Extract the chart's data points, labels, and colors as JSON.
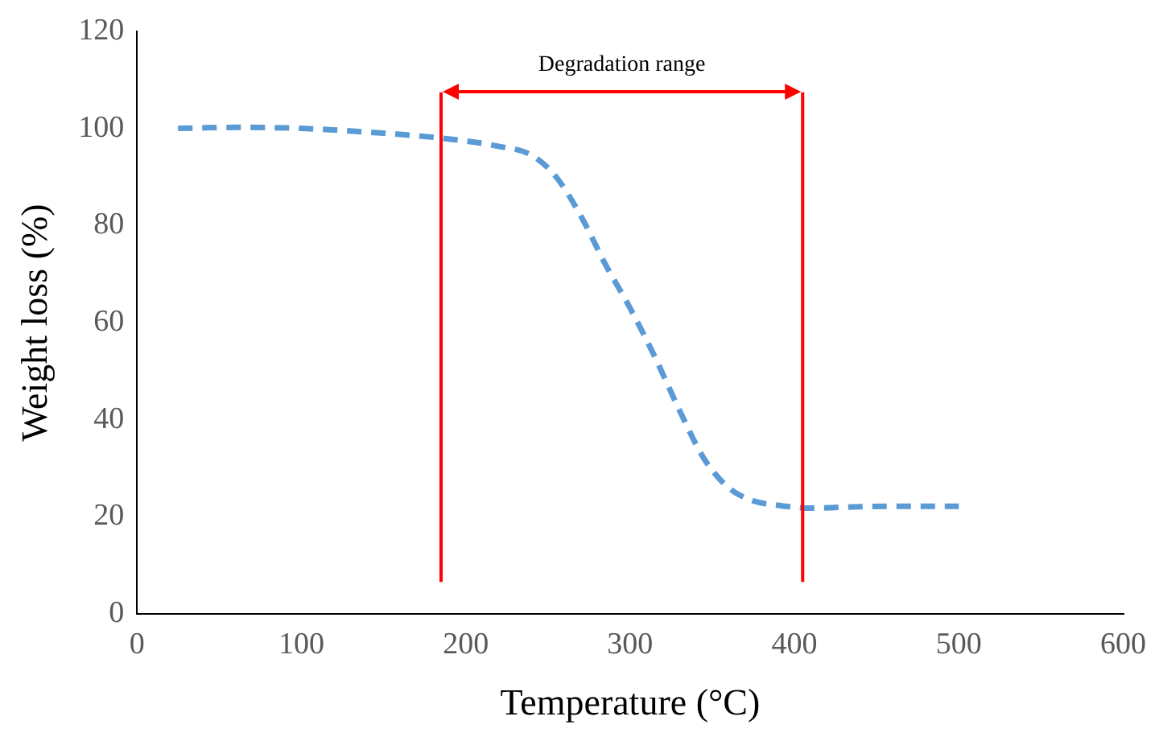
{
  "chart_data": {
    "type": "line",
    "xlabel": "Temperature (°C)",
    "ylabel": "Weight loss (%)",
    "x": [
      25,
      60,
      100,
      150,
      185,
      220,
      240,
      255,
      270,
      285,
      300,
      315,
      330,
      345,
      360,
      375,
      390,
      410,
      430,
      460,
      500
    ],
    "series": [
      {
        "color": "#5b9bd5",
        "values": [
          100,
          100.2,
          100,
          99,
          98,
          96.3,
          94.5,
          90,
          82,
          72,
          63,
          53,
          42,
          32,
          26,
          23.3,
          22.4,
          21.8,
          22,
          22.2,
          22.2
        ]
      }
    ],
    "xlim": [
      0,
      600
    ],
    "xticks": [
      0,
      100,
      200,
      300,
      400,
      500,
      600
    ],
    "ylim": [
      0,
      120
    ],
    "yticks": [
      0,
      20,
      40,
      60,
      80,
      100,
      120
    ],
    "ref_lines": [
      {
        "axis": "x",
        "value": 185,
        "color": "#ff0000"
      },
      {
        "axis": "x",
        "value": 405,
        "color": "#ff0000"
      }
    ],
    "annotations": [
      "Degradation range"
    ],
    "grid": false,
    "legend": false,
    "marker": "none",
    "line_style": "dashed"
  }
}
